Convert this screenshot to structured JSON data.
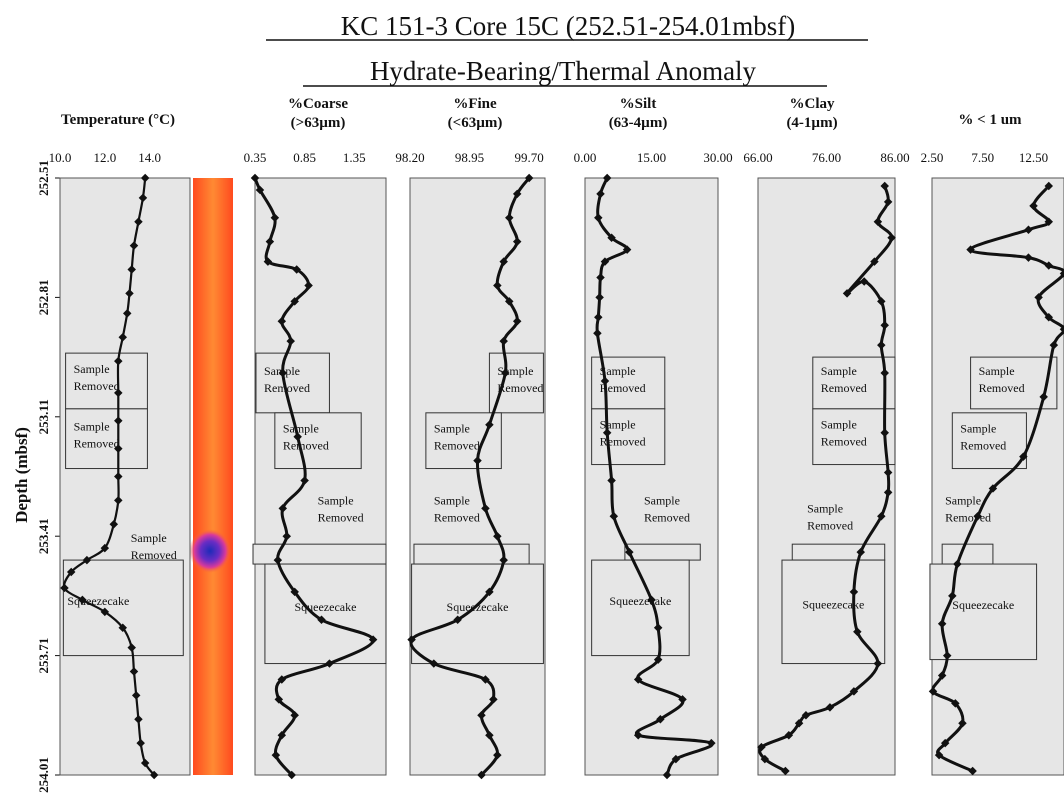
{
  "title": "KC 151-3 Core 15C (252.51-254.01mbsf)",
  "subtitle": "Hydrate-Bearing/Thermal Anomaly",
  "chart_data": {
    "type": "line",
    "orientation": "vertical-depth",
    "ylabel": "Depth (mbsf)",
    "ylim": [
      252.51,
      254.01
    ],
    "yticks": [
      "252.51",
      "252.81",
      "253.11",
      "253.41",
      "253.71",
      "254.01"
    ],
    "panels": [
      {
        "title": "Temperature (°C)",
        "xlim": [
          10.0,
          15.8
        ],
        "xticks": [
          {
            "v": 10.0,
            "l": "10.0"
          },
          {
            "v": 12.0,
            "l": "12.0"
          },
          {
            "v": 14.0,
            "l": "14.0"
          }
        ],
        "points": [
          [
            13.8,
            252.51
          ],
          [
            13.7,
            252.56
          ],
          [
            13.5,
            252.62
          ],
          [
            13.3,
            252.68
          ],
          [
            13.2,
            252.74
          ],
          [
            13.1,
            252.8
          ],
          [
            13.0,
            252.85
          ],
          [
            12.8,
            252.91
          ],
          [
            12.6,
            252.97
          ],
          [
            12.6,
            253.05
          ],
          [
            12.6,
            253.12
          ],
          [
            12.6,
            253.19
          ],
          [
            12.6,
            253.26
          ],
          [
            12.6,
            253.32
          ],
          [
            12.4,
            253.38
          ],
          [
            12.0,
            253.44
          ],
          [
            11.2,
            253.47
          ],
          [
            10.5,
            253.5
          ],
          [
            10.2,
            253.54
          ],
          [
            11.0,
            253.57
          ],
          [
            12.0,
            253.6
          ],
          [
            12.8,
            253.64
          ],
          [
            13.2,
            253.69
          ],
          [
            13.3,
            253.75
          ],
          [
            13.4,
            253.81
          ],
          [
            13.5,
            253.87
          ],
          [
            13.6,
            253.93
          ],
          [
            13.8,
            253.98
          ],
          [
            14.2,
            254.01
          ]
        ],
        "boxes": [
          {
            "text": "Sample|Removed",
            "x0": 10.25,
            "x1": 13.9,
            "d0": 252.95,
            "d1": 253.09
          },
          {
            "text": "Sample|Removed",
            "x0": 10.25,
            "x1": 13.9,
            "d0": 253.09,
            "d1": 253.24
          },
          {
            "text": "Sample|Removed",
            "x0": 12.8,
            "x1": 15.3,
            "d0": 253.42,
            "d1": 253.47,
            "label_only": true
          },
          {
            "text": "Squeezecake",
            "x0": 10.15,
            "x1": 15.5,
            "d0": 253.47,
            "d1": 253.71
          }
        ]
      },
      {
        "title": "%Coarse|(>63µm)",
        "xlim": [
          0.35,
          1.67
        ],
        "xticks": [
          {
            "v": 0.35,
            "l": "0.35"
          },
          {
            "v": 0.85,
            "l": "0.85"
          },
          {
            "v": 1.35,
            "l": "1.35"
          }
        ],
        "points": [
          [
            0.35,
            252.51
          ],
          [
            0.4,
            252.54
          ],
          [
            0.55,
            252.61
          ],
          [
            0.5,
            252.67
          ],
          [
            0.48,
            252.72
          ],
          [
            0.77,
            252.74
          ],
          [
            0.89,
            252.78
          ],
          [
            0.75,
            252.82
          ],
          [
            0.62,
            252.87
          ],
          [
            0.71,
            252.92
          ],
          [
            0.63,
            253.0
          ],
          [
            0.78,
            253.16
          ],
          [
            0.85,
            253.27
          ],
          [
            0.63,
            253.34
          ],
          [
            0.67,
            253.41
          ],
          [
            0.58,
            253.47
          ],
          [
            0.75,
            253.55
          ],
          [
            1.02,
            253.62
          ],
          [
            1.54,
            253.67
          ],
          [
            1.1,
            253.73
          ],
          [
            0.62,
            253.77
          ],
          [
            0.59,
            253.82
          ],
          [
            0.75,
            253.86
          ],
          [
            0.62,
            253.91
          ],
          [
            0.56,
            253.96
          ],
          [
            0.72,
            254.01
          ]
        ],
        "boxes": [
          {
            "text": "Sample|Removed",
            "x0": 0.36,
            "x1": 1.1,
            "d0": 252.95,
            "d1": 253.1
          },
          {
            "text": "Sample|Removed",
            "x0": 0.55,
            "x1": 1.42,
            "d0": 253.1,
            "d1": 253.24
          },
          {
            "text": "Sample|Removed",
            "x0": 0.9,
            "x1": 1.65,
            "d0": 253.3,
            "d1": 253.4,
            "label_only": true
          },
          {
            "text": "",
            "x0": 0.33,
            "x1": 1.67,
            "d0": 253.43,
            "d1": 253.48
          },
          {
            "text": "Squeezecake",
            "x0": 0.45,
            "x1": 1.67,
            "d0": 253.48,
            "d1": 253.73
          }
        ]
      },
      {
        "title": "%Fine|(<63µm)",
        "xlim": [
          98.2,
          99.9
        ],
        "xticks": [
          {
            "v": 98.2,
            "l": "98.20"
          },
          {
            "v": 98.95,
            "l": "98.95"
          },
          {
            "v": 99.7,
            "l": "99.70"
          }
        ],
        "points": [
          [
            99.7,
            252.51
          ],
          [
            99.55,
            252.55
          ],
          [
            99.45,
            252.61
          ],
          [
            99.55,
            252.67
          ],
          [
            99.38,
            252.72
          ],
          [
            99.3,
            252.78
          ],
          [
            99.45,
            252.82
          ],
          [
            99.55,
            252.87
          ],
          [
            99.38,
            252.92
          ],
          [
            99.4,
            253.0
          ],
          [
            99.2,
            253.13
          ],
          [
            99.05,
            253.22
          ],
          [
            99.15,
            253.34
          ],
          [
            99.3,
            253.41
          ],
          [
            99.38,
            253.47
          ],
          [
            99.2,
            253.55
          ],
          [
            98.8,
            253.62
          ],
          [
            98.22,
            253.67
          ],
          [
            98.5,
            253.73
          ],
          [
            99.15,
            253.77
          ],
          [
            99.25,
            253.82
          ],
          [
            99.1,
            253.86
          ],
          [
            99.2,
            253.91
          ],
          [
            99.3,
            253.96
          ],
          [
            99.1,
            254.01
          ]
        ],
        "boxes": [
          {
            "text": "Sample|Removed",
            "x0": 99.2,
            "x1": 99.88,
            "d0": 252.95,
            "d1": 253.1
          },
          {
            "text": "Sample|Removed",
            "x0": 98.4,
            "x1": 99.35,
            "d0": 253.1,
            "d1": 253.24
          },
          {
            "text": "Sample|Removed",
            "x0": 98.4,
            "x1": 99.2,
            "d0": 253.3,
            "d1": 253.4,
            "label_only": true
          },
          {
            "text": "",
            "x0": 98.25,
            "x1": 99.7,
            "d0": 253.43,
            "d1": 253.48
          },
          {
            "text": "Squeezecake",
            "x0": 98.22,
            "x1": 99.88,
            "d0": 253.48,
            "d1": 253.73
          }
        ]
      },
      {
        "title": "%Silt|(63-4µm)",
        "xlim": [
          0.0,
          30.0
        ],
        "xticks": [
          {
            "v": 0.0,
            "l": "0.00"
          },
          {
            "v": 15.0,
            "l": "15.00"
          },
          {
            "v": 30.0,
            "l": "30.00"
          }
        ],
        "points": [
          [
            5.0,
            252.51
          ],
          [
            3.5,
            252.55
          ],
          [
            3.0,
            252.61
          ],
          [
            6.0,
            252.66
          ],
          [
            9.5,
            252.69
          ],
          [
            4.5,
            252.72
          ],
          [
            3.5,
            252.76
          ],
          [
            3.3,
            252.81
          ],
          [
            3.0,
            252.86
          ],
          [
            2.8,
            252.9
          ],
          [
            4.5,
            253.02
          ],
          [
            5.0,
            253.15
          ],
          [
            6.0,
            253.27
          ],
          [
            6.5,
            253.36
          ],
          [
            10.0,
            253.45
          ],
          [
            15.0,
            253.57
          ],
          [
            16.5,
            253.64
          ],
          [
            16.5,
            253.72
          ],
          [
            12.0,
            253.77
          ],
          [
            22.0,
            253.82
          ],
          [
            17.0,
            253.87
          ],
          [
            12.0,
            253.91
          ],
          [
            28.5,
            253.93
          ],
          [
            20.5,
            253.97
          ],
          [
            18.5,
            254.01
          ]
        ],
        "boxes": [
          {
            "text": "Sample|Removed",
            "x0": 1.5,
            "x1": 18.0,
            "d0": 252.96,
            "d1": 253.09
          },
          {
            "text": "Sample|Removed",
            "x0": 1.5,
            "x1": 18.0,
            "d0": 253.09,
            "d1": 253.23
          },
          {
            "text": "Sample|Removed",
            "x0": 11.5,
            "x1": 28.0,
            "d0": 253.3,
            "d1": 253.4,
            "label_only": true
          },
          {
            "text": "",
            "x0": 9.0,
            "x1": 26.0,
            "d0": 253.43,
            "d1": 253.47
          },
          {
            "text": "Squeezecake",
            "x0": 1.5,
            "x1": 23.5,
            "d0": 253.47,
            "d1": 253.71
          }
        ]
      },
      {
        "title": "%Clay|(4-1µm)",
        "xlim": [
          66.0,
          86.0
        ],
        "xticks": [
          {
            "v": 66.0,
            "l": "66.00"
          },
          {
            "v": 76.0,
            "l": "76.00"
          },
          {
            "v": 86.0,
            "l": "86.00"
          }
        ],
        "points": [
          [
            84.5,
            252.53
          ],
          [
            85.0,
            252.57
          ],
          [
            83.5,
            252.62
          ],
          [
            85.5,
            252.66
          ],
          [
            83.0,
            252.72
          ],
          [
            79.0,
            252.8
          ],
          [
            81.5,
            252.77
          ],
          [
            84.0,
            252.82
          ],
          [
            84.5,
            252.88
          ],
          [
            84.0,
            252.93
          ],
          [
            84.5,
            253.0
          ],
          [
            84.5,
            253.15
          ],
          [
            85.0,
            253.25
          ],
          [
            85.0,
            253.3
          ],
          [
            84.0,
            253.36
          ],
          [
            81.0,
            253.45
          ],
          [
            80.0,
            253.55
          ],
          [
            80.5,
            253.65
          ],
          [
            83.5,
            253.73
          ],
          [
            80.0,
            253.8
          ],
          [
            76.5,
            253.84
          ],
          [
            73.0,
            253.86
          ],
          [
            72.0,
            253.88
          ],
          [
            70.5,
            253.91
          ],
          [
            66.5,
            253.94
          ],
          [
            67.0,
            253.97
          ],
          [
            70.0,
            254.0
          ]
        ],
        "boxes": [
          {
            "text": "Sample|Removed",
            "x0": 74.0,
            "x1": 86.0,
            "d0": 252.96,
            "d1": 253.09
          },
          {
            "text": "Sample|Removed",
            "x0": 74.0,
            "x1": 86.0,
            "d0": 253.09,
            "d1": 253.23
          },
          {
            "text": "Sample|Removed",
            "x0": 72.0,
            "x1": 82.0,
            "d0": 253.33,
            "d1": 253.41,
            "label_only": true
          },
          {
            "text": "",
            "x0": 71.0,
            "x1": 84.5,
            "d0": 253.43,
            "d1": 253.47
          },
          {
            "text": "Squeezecake",
            "x0": 69.5,
            "x1": 84.5,
            "d0": 253.47,
            "d1": 253.73
          }
        ]
      },
      {
        "title": "% < 1 um",
        "xlim": [
          2.5,
          15.5
        ],
        "xticks": [
          {
            "v": 2.5,
            "l": "2.50"
          },
          {
            "v": 7.5,
            "l": "7.50"
          },
          {
            "v": 12.5,
            "l": "12.50"
          }
        ],
        "points": [
          [
            14.0,
            252.53
          ],
          [
            12.5,
            252.58
          ],
          [
            14.0,
            252.62
          ],
          [
            12.0,
            252.64
          ],
          [
            6.3,
            252.69
          ],
          [
            12.0,
            252.71
          ],
          [
            14.0,
            252.73
          ],
          [
            15.5,
            252.75
          ],
          [
            13.0,
            252.81
          ],
          [
            14.0,
            252.86
          ],
          [
            15.5,
            252.89
          ],
          [
            14.5,
            252.93
          ],
          [
            13.5,
            253.06
          ],
          [
            11.5,
            253.21
          ],
          [
            8.5,
            253.29
          ],
          [
            7.0,
            253.36
          ],
          [
            5.0,
            253.48
          ],
          [
            4.5,
            253.56
          ],
          [
            3.5,
            253.63
          ],
          [
            4.0,
            253.71
          ],
          [
            3.5,
            253.76
          ],
          [
            2.6,
            253.8
          ],
          [
            4.8,
            253.83
          ],
          [
            5.5,
            253.88
          ],
          [
            3.8,
            253.93
          ],
          [
            3.2,
            253.96
          ],
          [
            6.5,
            254.0
          ]
        ],
        "boxes": [
          {
            "text": "Sample|Removed",
            "x0": 6.3,
            "x1": 14.8,
            "d0": 252.96,
            "d1": 253.09
          },
          {
            "text": "Sample|Removed",
            "x0": 4.5,
            "x1": 11.8,
            "d0": 253.1,
            "d1": 253.24
          },
          {
            "text": "Sample|Removed",
            "x0": 3.0,
            "x1": 10.0,
            "d0": 253.3,
            "d1": 253.4,
            "label_only": true
          },
          {
            "text": "",
            "x0": 3.5,
            "x1": 8.5,
            "d0": 253.43,
            "d1": 253.48
          },
          {
            "text": "Squeezecake",
            "x0": 2.3,
            "x1": 12.8,
            "d0": 253.48,
            "d1": 253.72
          }
        ]
      }
    ]
  },
  "colors": {
    "panel_bg": "#e6e6e6",
    "line": "#111111",
    "thermal_outer": "#ff3a1a",
    "thermal_mid": "#ff7a2a",
    "thermal_anomaly": "#1d2bb8"
  }
}
